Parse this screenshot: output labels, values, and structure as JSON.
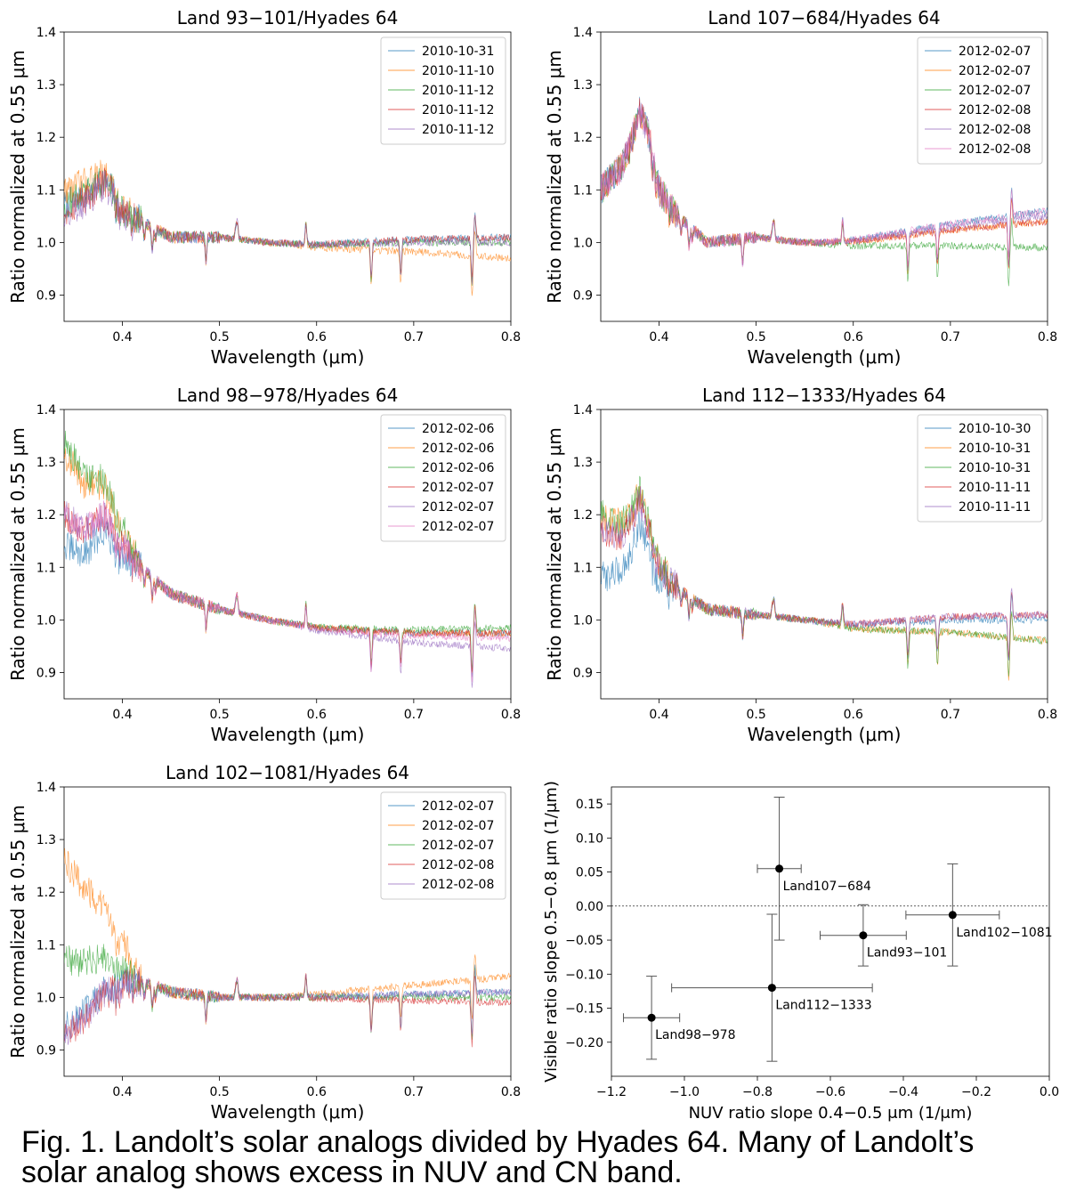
{
  "caption": {
    "line1": "Fig. 1. Landolt’s solar analogs divided by Hyades 64. Many of Landolt’s",
    "line2": "solar analog shows excess in NUV and CN band."
  },
  "colors": {
    "series": [
      "#1f77b4",
      "#ff7f0e",
      "#2ca02c",
      "#d62728",
      "#9467bd",
      "#e377c2"
    ],
    "axis": "#000000",
    "legend_border": "#cccccc"
  },
  "chart_data": [
    {
      "type": "line",
      "title": "Land  93−101/Hyades 64",
      "xlabel": "Wavelength (μm)",
      "ylabel": "Ratio normalized at 0.55 μm",
      "xlim": [
        0.34,
        0.8
      ],
      "ylim": [
        0.85,
        1.4
      ],
      "xticks": [
        "0.4",
        "0.5",
        "0.6",
        "0.7",
        "0.8"
      ],
      "yticks": [
        "0.9",
        "1.0",
        "1.1",
        "1.2",
        "1.3",
        "1.4"
      ],
      "legend": "top-right",
      "profile": {
        "x": [
          0.34,
          0.36,
          0.37,
          0.38,
          0.39,
          0.4,
          0.42,
          0.45,
          0.5,
          0.55,
          0.6,
          0.7,
          0.8
        ],
        "y": [
          1.07,
          1.09,
          1.1,
          1.12,
          1.1,
          1.06,
          1.04,
          1.01,
          1.01,
          1.0,
          0.995,
          1.0,
          1.0
        ]
      },
      "series": [
        {
          "name": "2010-10-31",
          "uv": 0.0,
          "red": 0.01
        },
        {
          "name": "2010-11-10",
          "uv": 0.03,
          "red": -0.03
        },
        {
          "name": "2010-11-12",
          "uv": 0.0,
          "red": 0.0
        },
        {
          "name": "2010-11-12",
          "uv": -0.01,
          "red": 0.01
        },
        {
          "name": "2010-11-12",
          "uv": -0.02,
          "red": 0.0
        }
      ]
    },
    {
      "type": "line",
      "title": "Land  107−684/Hyades 64",
      "xlabel": "Wavelength (μm)",
      "ylabel": "Ratio normalized at 0.55 μm",
      "xlim": [
        0.34,
        0.8
      ],
      "ylim": [
        0.85,
        1.4
      ],
      "xticks": [
        "0.4",
        "0.5",
        "0.6",
        "0.7",
        "0.8"
      ],
      "yticks": [
        "0.9",
        "1.0",
        "1.1",
        "1.2",
        "1.3",
        "1.4"
      ],
      "legend": "top-right",
      "profile": {
        "x": [
          0.34,
          0.36,
          0.37,
          0.38,
          0.39,
          0.4,
          0.42,
          0.45,
          0.5,
          0.55,
          0.6,
          0.7,
          0.8
        ],
        "y": [
          1.1,
          1.14,
          1.18,
          1.25,
          1.2,
          1.1,
          1.05,
          1.0,
          1.01,
          1.0,
          0.995,
          1.0,
          1.0
        ]
      },
      "series": [
        {
          "name": "2012-02-07",
          "uv": 0.0,
          "red": 0.06
        },
        {
          "name": "2012-02-07",
          "uv": 0.0,
          "red": 0.04
        },
        {
          "name": "2012-02-07",
          "uv": 0.0,
          "red": -0.01
        },
        {
          "name": "2012-02-08",
          "uv": 0.0,
          "red": 0.04
        },
        {
          "name": "2012-02-08",
          "uv": 0.0,
          "red": 0.05
        },
        {
          "name": "2012-02-08",
          "uv": 0.0,
          "red": 0.06
        }
      ]
    },
    {
      "type": "line",
      "title": "Land  98−978/Hyades 64",
      "xlabel": "Wavelength (μm)",
      "ylabel": "Ratio normalized at 0.55 μm",
      "xlim": [
        0.34,
        0.8
      ],
      "ylim": [
        0.85,
        1.4
      ],
      "xticks": [
        "0.4",
        "0.5",
        "0.6",
        "0.7",
        "0.8"
      ],
      "yticks": [
        "0.9",
        "1.0",
        "1.1",
        "1.2",
        "1.3",
        "1.4"
      ],
      "legend": "top-right",
      "profile": {
        "x": [
          0.34,
          0.36,
          0.37,
          0.38,
          0.39,
          0.4,
          0.42,
          0.45,
          0.5,
          0.55,
          0.6,
          0.7,
          0.8
        ],
        "y": [
          1.2,
          1.17,
          1.18,
          1.2,
          1.17,
          1.14,
          1.1,
          1.05,
          1.02,
          1.0,
          0.985,
          0.975,
          0.975
        ]
      },
      "series": [
        {
          "name": "2012-02-06",
          "uv": -0.06,
          "red": 0.0
        },
        {
          "name": "2012-02-06",
          "uv": 0.12,
          "red": 0.0
        },
        {
          "name": "2012-02-06",
          "uv": 0.14,
          "red": 0.01
        },
        {
          "name": "2012-02-07",
          "uv": 0.0,
          "red": 0.0
        },
        {
          "name": "2012-02-07",
          "uv": 0.0,
          "red": -0.03
        },
        {
          "name": "2012-02-07",
          "uv": 0.0,
          "red": -0.01
        }
      ]
    },
    {
      "type": "line",
      "title": "Land  112−1333/Hyades 64",
      "xlabel": "Wavelength (μm)",
      "ylabel": "Ratio normalized at 0.55 μm",
      "xlim": [
        0.34,
        0.8
      ],
      "ylim": [
        0.85,
        1.4
      ],
      "xticks": [
        "0.4",
        "0.5",
        "0.6",
        "0.7",
        "0.8"
      ],
      "yticks": [
        "0.9",
        "1.0",
        "1.1",
        "1.2",
        "1.3",
        "1.4"
      ],
      "legend": "top-right",
      "profile": {
        "x": [
          0.34,
          0.36,
          0.37,
          0.38,
          0.39,
          0.4,
          0.42,
          0.45,
          0.5,
          0.55,
          0.6,
          0.7,
          0.8
        ],
        "y": [
          1.17,
          1.16,
          1.18,
          1.23,
          1.17,
          1.1,
          1.06,
          1.02,
          1.01,
          1.0,
          0.99,
          1.0,
          1.0
        ]
      },
      "series": [
        {
          "name": "2010-10-30",
          "uv": -0.09,
          "red": 0.0
        },
        {
          "name": "2010-10-31",
          "uv": 0.03,
          "red": -0.04
        },
        {
          "name": "2010-10-31",
          "uv": 0.03,
          "red": -0.04
        },
        {
          "name": "2010-11-11",
          "uv": 0.0,
          "red": 0.01
        },
        {
          "name": "2010-11-11",
          "uv": 0.0,
          "red": 0.01
        }
      ]
    },
    {
      "type": "line",
      "title": "Land  102−1081/Hyades 64",
      "xlabel": "Wavelength (μm)",
      "ylabel": "Ratio normalized at 0.55 μm",
      "xlim": [
        0.34,
        0.8
      ],
      "ylim": [
        0.85,
        1.4
      ],
      "xticks": [
        "0.4",
        "0.5",
        "0.6",
        "0.7",
        "0.8"
      ],
      "yticks": [
        "0.9",
        "1.0",
        "1.1",
        "1.2",
        "1.3",
        "1.4"
      ],
      "legend": "top-right",
      "profile": {
        "x": [
          0.34,
          0.36,
          0.37,
          0.38,
          0.39,
          0.4,
          0.42,
          0.45,
          0.5,
          0.55,
          0.6,
          0.7,
          0.8
        ],
        "y": [
          0.94,
          0.97,
          0.99,
          1.01,
          1.02,
          1.03,
          1.03,
          1.01,
          1.0,
          1.0,
          1.0,
          1.0,
          1.0
        ]
      },
      "series": [
        {
          "name": "2012-02-07",
          "uv": 0.0,
          "red": 0.01
        },
        {
          "name": "2012-02-07",
          "uv": 0.32,
          "red": 0.04
        },
        {
          "name": "2012-02-07",
          "uv": 0.13,
          "red": 0.0
        },
        {
          "name": "2012-02-08",
          "uv": -0.02,
          "red": -0.01
        },
        {
          "name": "2012-02-08",
          "uv": -0.01,
          "red": 0.01
        }
      ]
    },
    {
      "type": "scatter",
      "xlabel": "NUV ratio slope 0.4−0.5 μm (1/μm)",
      "ylabel": "Visible ratio slope 0.5−0.8 μm (1/μm)",
      "xlim": [
        -1.2,
        0.0
      ],
      "ylim": [
        -0.25,
        0.175
      ],
      "xticks": [
        "−1.2",
        "−1.0",
        "−0.8",
        "−0.6",
        "−0.4",
        "−0.2",
        "0.0"
      ],
      "yticks": [
        "−0.20",
        "−0.15",
        "−0.10",
        "−0.05",
        "0.00",
        "0.05",
        "0.10",
        "0.15"
      ],
      "hline": 0.0,
      "points": [
        {
          "label": "Land107−684",
          "x": -0.74,
          "y": 0.055,
          "xerr": 0.06,
          "yerr_lo": 0.105,
          "yerr_hi": 0.105
        },
        {
          "label": "Land93−101",
          "x": -0.51,
          "y": -0.043,
          "xerr": 0.118,
          "yerr_lo": 0.045,
          "yerr_hi": 0.045
        },
        {
          "label": "Land102−1081",
          "x": -0.265,
          "y": -0.013,
          "xerr": 0.128,
          "yerr_lo": 0.075,
          "yerr_hi": 0.075
        },
        {
          "label": "Land112−1333",
          "x": -0.76,
          "y": -0.12,
          "xerr": 0.275,
          "yerr_lo": 0.108,
          "yerr_hi": 0.108
        },
        {
          "label": "Land98−978",
          "x": -1.09,
          "y": -0.164,
          "xerr": 0.077,
          "yerr_lo": 0.061,
          "yerr_hi": 0.061
        }
      ]
    }
  ]
}
